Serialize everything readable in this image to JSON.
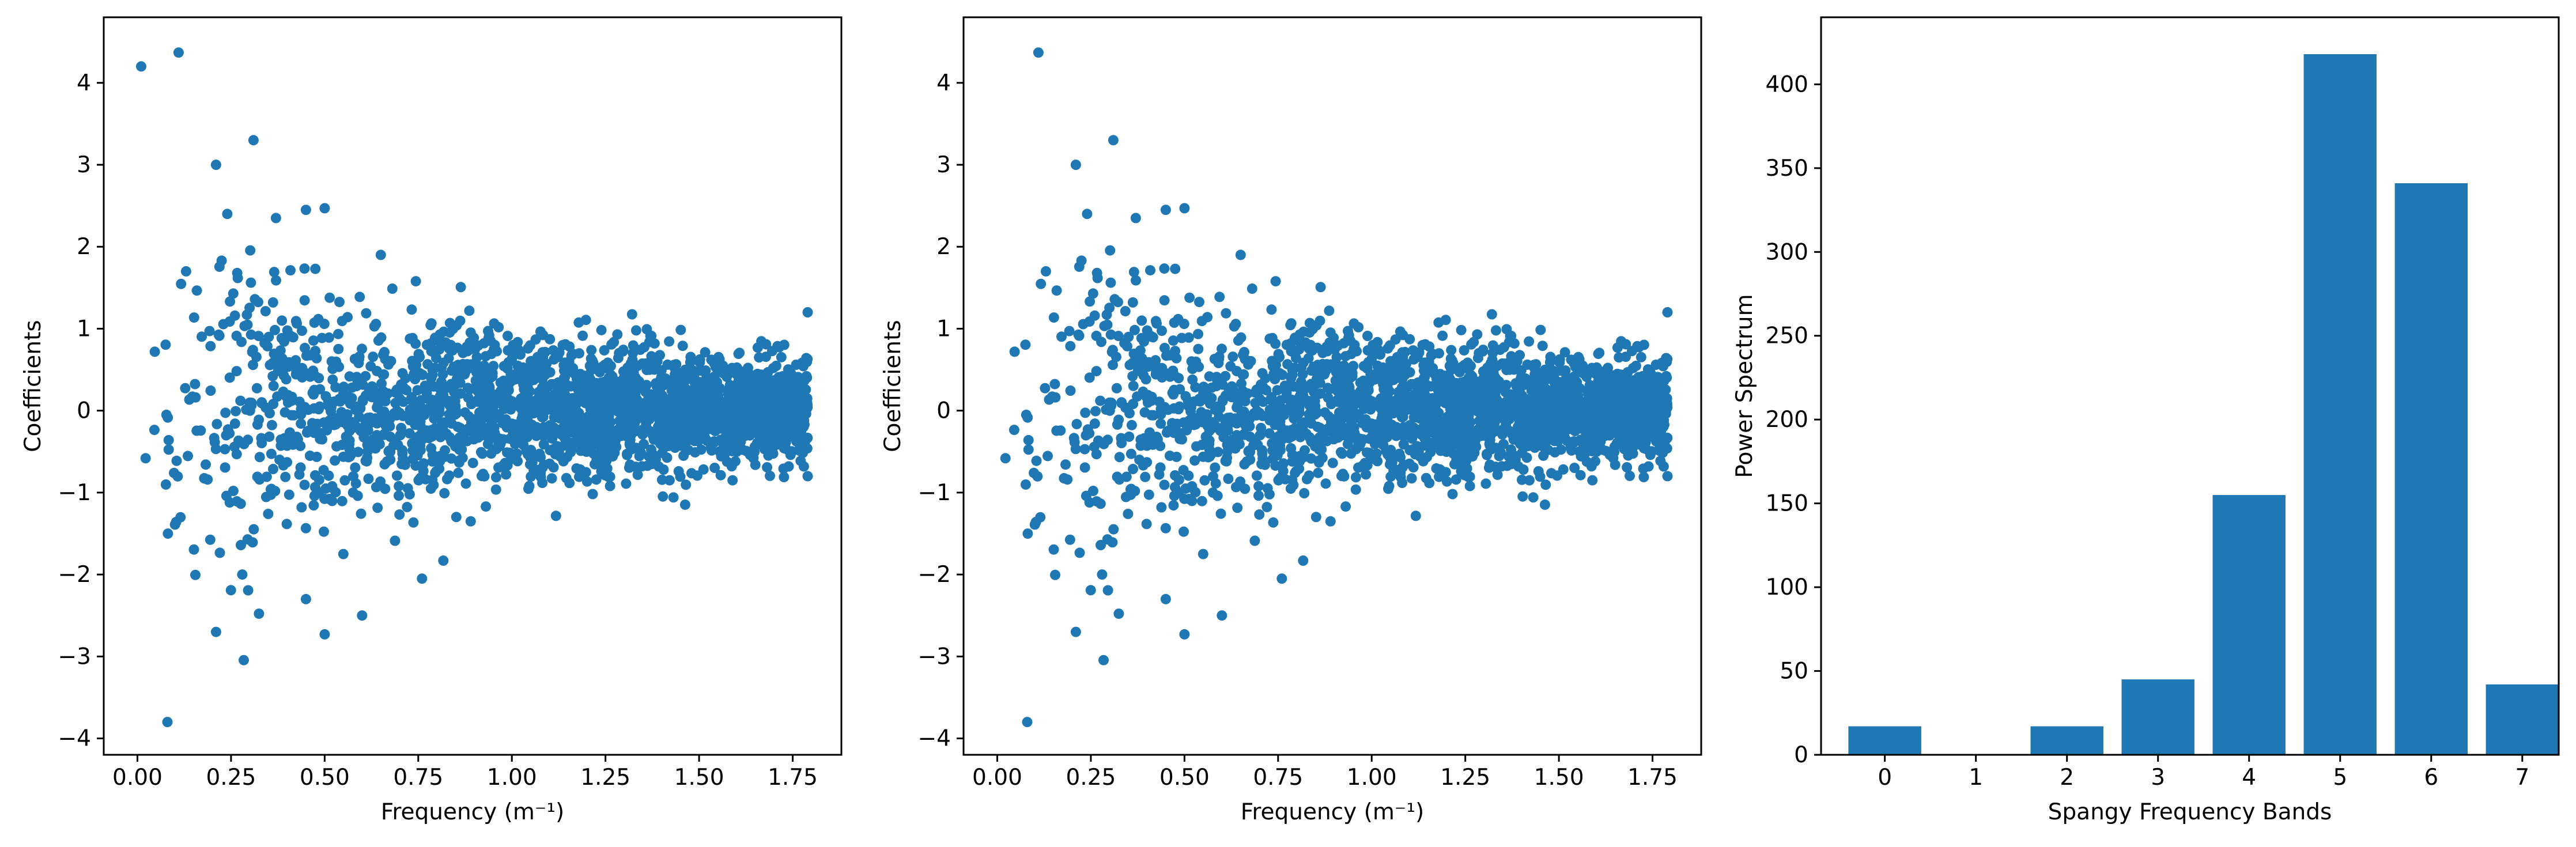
{
  "chart_data": [
    {
      "type": "scatter",
      "xlabel": "Frequency (m⁻¹)",
      "ylabel": "Coefficients",
      "xlim": [
        -0.09,
        1.88
      ],
      "ylim": [
        -4.2,
        4.8
      ],
      "xticks": [
        0.0,
        0.25,
        0.5,
        0.75,
        1.0,
        1.25,
        1.5,
        1.75
      ],
      "xtick_labels": [
        "0.00",
        "0.25",
        "0.50",
        "0.75",
        "1.00",
        "1.25",
        "1.50",
        "1.75"
      ],
      "yticks": [
        -4,
        -3,
        -2,
        -1,
        0,
        1,
        2,
        3,
        4
      ],
      "ytick_labels": [
        "−4",
        "−3",
        "−2",
        "−1",
        "0",
        "1",
        "2",
        "3",
        "4"
      ],
      "color": "#1f77b4",
      "highlight_points": [
        {
          "x": 0.01,
          "y": 4.2
        },
        {
          "x": 0.11,
          "y": 4.37
        },
        {
          "x": 0.08,
          "y": -3.8
        },
        {
          "x": 0.31,
          "y": 3.3
        },
        {
          "x": 0.21,
          "y": 3.0
        },
        {
          "x": 0.21,
          "y": -2.7
        },
        {
          "x": 0.5,
          "y": -2.73
        },
        {
          "x": 0.5,
          "y": 2.47
        },
        {
          "x": 0.45,
          "y": 2.45
        },
        {
          "x": 0.24,
          "y": 2.4
        },
        {
          "x": 0.37,
          "y": 2.35
        },
        {
          "x": 0.6,
          "y": -2.5
        },
        {
          "x": 0.45,
          "y": -2.3
        },
        {
          "x": 0.76,
          "y": -2.05
        },
        {
          "x": 0.65,
          "y": 1.9
        },
        {
          "x": 0.13,
          "y": 1.7
        },
        {
          "x": 0.28,
          "y": -2.0
        },
        {
          "x": 0.55,
          "y": -1.75
        },
        {
          "x": 1.79,
          "y": 1.2
        },
        {
          "x": 1.79,
          "y": -0.8
        }
      ],
      "point_count": 2400
    },
    {
      "type": "scatter",
      "xlabel": "Frequency (m⁻¹)",
      "ylabel": "Coefficients",
      "xlim": [
        -0.09,
        1.88
      ],
      "ylim": [
        -4.2,
        4.8
      ],
      "xticks": [
        0.0,
        0.25,
        0.5,
        0.75,
        1.0,
        1.25,
        1.5,
        1.75
      ],
      "xtick_labels": [
        "0.00",
        "0.25",
        "0.50",
        "0.75",
        "1.00",
        "1.25",
        "1.50",
        "1.75"
      ],
      "yticks": [
        -4,
        -3,
        -2,
        -1,
        0,
        1,
        2,
        3,
        4
      ],
      "ytick_labels": [
        "−4",
        "−3",
        "−2",
        "−1",
        "0",
        "1",
        "2",
        "3",
        "4"
      ],
      "color": "#1f77b4",
      "highlight_points": [
        {
          "x": 0.11,
          "y": 4.37
        },
        {
          "x": 0.08,
          "y": -3.8
        },
        {
          "x": 0.31,
          "y": 3.3
        },
        {
          "x": 0.21,
          "y": 3.0
        },
        {
          "x": 0.21,
          "y": -2.7
        },
        {
          "x": 0.5,
          "y": -2.73
        },
        {
          "x": 0.5,
          "y": 2.47
        },
        {
          "x": 0.45,
          "y": 2.45
        },
        {
          "x": 0.24,
          "y": 2.4
        },
        {
          "x": 0.37,
          "y": 2.35
        },
        {
          "x": 0.6,
          "y": -2.5
        },
        {
          "x": 0.45,
          "y": -2.3
        },
        {
          "x": 0.76,
          "y": -2.05
        },
        {
          "x": 0.65,
          "y": 1.9
        },
        {
          "x": 0.13,
          "y": 1.7
        },
        {
          "x": 0.28,
          "y": -2.0
        },
        {
          "x": 0.55,
          "y": -1.75
        },
        {
          "x": 1.79,
          "y": 1.2
        },
        {
          "x": 1.79,
          "y": -0.8
        }
      ],
      "point_count": 2400
    },
    {
      "type": "bar",
      "xlabel": "Spangy Frequency Bands",
      "ylabel": "Power Spectrum",
      "categories": [
        "0",
        "1",
        "2",
        "3",
        "4",
        "5",
        "6",
        "7"
      ],
      "values": [
        17,
        0,
        17,
        45,
        155,
        418,
        341,
        42
      ],
      "xlim": [
        -0.7,
        7.4
      ],
      "ylim": [
        0,
        440
      ],
      "yticks": [
        0,
        50,
        100,
        150,
        200,
        250,
        300,
        350,
        400
      ],
      "ytick_labels": [
        "0",
        "50",
        "100",
        "150",
        "200",
        "250",
        "300",
        "350",
        "400"
      ],
      "color": "#1f77b4"
    }
  ]
}
